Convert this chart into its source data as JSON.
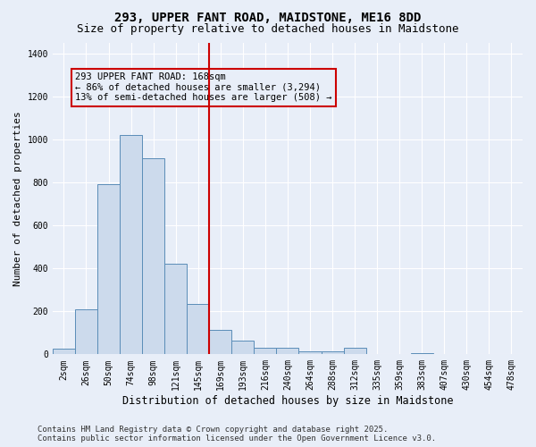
{
  "title": "293, UPPER FANT ROAD, MAIDSTONE, ME16 8DD",
  "subtitle": "Size of property relative to detached houses in Maidstone",
  "xlabel": "Distribution of detached houses by size in Maidstone",
  "ylabel": "Number of detached properties",
  "bin_labels": [
    "2sqm",
    "26sqm",
    "50sqm",
    "74sqm",
    "98sqm",
    "121sqm",
    "145sqm",
    "169sqm",
    "193sqm",
    "216sqm",
    "240sqm",
    "264sqm",
    "288sqm",
    "312sqm",
    "335sqm",
    "359sqm",
    "383sqm",
    "407sqm",
    "430sqm",
    "454sqm",
    "478sqm"
  ],
  "bar_heights": [
    25,
    210,
    790,
    1020,
    910,
    420,
    235,
    115,
    65,
    30,
    30,
    15,
    15,
    30,
    0,
    0,
    5,
    0,
    0,
    0,
    0
  ],
  "bar_color": "#ccdaec",
  "bar_edge_color": "#5b8db8",
  "background_color": "#e8eef8",
  "grid_color": "#ffffff",
  "vline_color": "#cc0000",
  "vline_index": 6.5,
  "annotation_text": "293 UPPER FANT ROAD: 168sqm\n← 86% of detached houses are smaller (3,294)\n13% of semi-detached houses are larger (508) →",
  "annotation_box_color": "#cc0000",
  "ylim": [
    0,
    1450
  ],
  "yticks": [
    0,
    200,
    400,
    600,
    800,
    1000,
    1200,
    1400
  ],
  "footer": "Contains HM Land Registry data © Crown copyright and database right 2025.\nContains public sector information licensed under the Open Government Licence v3.0.",
  "title_fontsize": 10,
  "subtitle_fontsize": 9,
  "xlabel_fontsize": 8.5,
  "ylabel_fontsize": 8,
  "tick_fontsize": 7,
  "annot_fontsize": 7.5,
  "footer_fontsize": 6.5
}
